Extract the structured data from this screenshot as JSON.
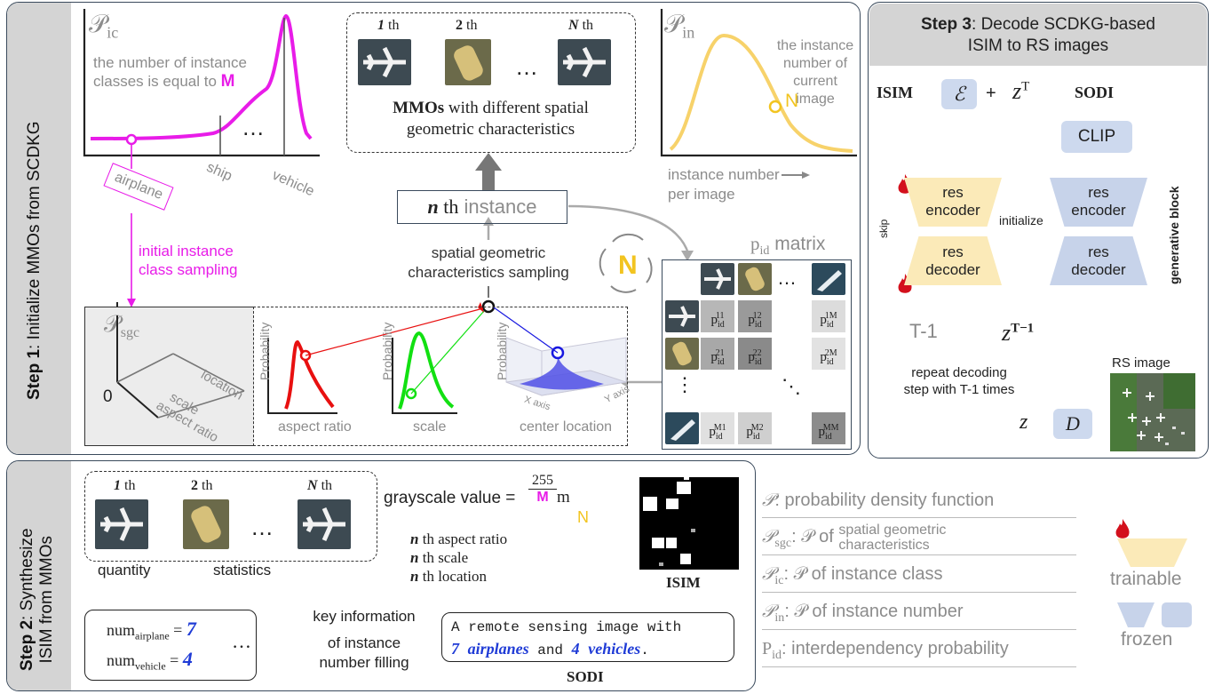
{
  "step1": {
    "label_bold": "Step 1",
    "label_rest": ": Initialize MMOs from SCDKG",
    "pic_symbol": "𝒫",
    "pic_sub": "ic",
    "pic_note_1": "the number of instance",
    "pic_note_2": "classes is equal to",
    "pic_M": "M",
    "ellipsis": "…",
    "class_airplane": "airplane",
    "class_ship": "ship",
    "class_vehicle": "vehicle",
    "initial_sampling_1": "initial instance",
    "initial_sampling_2": "class sampling",
    "mmo_labels": [
      {
        "num": "1",
        "suffix": " th"
      },
      {
        "num": "2",
        "suffix": " th"
      },
      {
        "num": "N",
        "suffix": " th"
      }
    ],
    "mmo_caption_bold": "MMOs",
    "mmo_caption_rest": " with different spatial",
    "mmo_caption_line2": "geometric characteristics",
    "pin_symbol": "𝒫",
    "pin_sub": "in",
    "pin_note_1": "the instance",
    "pin_note_2": "number of",
    "pin_note_3": "current image",
    "pin_N": "N",
    "pin_xlabel_1": "instance number",
    "pin_xlabel_2": "per image",
    "nth_instance_n": "n",
    "nth_instance_th": " th",
    "nth_instance_rest": " instance",
    "sgc_sampling_1": "spatial geometric",
    "sgc_sampling_2": "characteristics sampling",
    "loop_N": "N",
    "pid_label_p": "p",
    "pid_label_sub": "id",
    "pid_label_rest": " matrix",
    "psgc_symbol": "𝒫",
    "psgc_sub": "sgc",
    "psgc_zero": "0",
    "psgc_location": "location",
    "psgc_scale": "scale",
    "psgc_aspect": "aspect ratio",
    "prob_label": "Probability",
    "aspect_label": "aspect ratio",
    "scale_label": "scale",
    "center_label": "center location",
    "x_axis": "X axis",
    "y_axis": "Y axis",
    "cells": [
      {
        "sup": "11"
      },
      {
        "sup": "12"
      },
      {
        "sup": "1M"
      },
      {
        "sup": "21"
      },
      {
        "sup": "22"
      },
      {
        "sup": "2M"
      },
      {
        "sup": "M1"
      },
      {
        "sup": "M2"
      },
      {
        "sup": "MM"
      }
    ],
    "cell_p": "p",
    "cell_sub": "id",
    "vdots": "⋮",
    "ddots": "⋱",
    "hdots": "…"
  },
  "step2": {
    "label_bold": "Step 2",
    "label_rest_1": ": Synthesize",
    "label_rest_2": "ISIM from MMOs",
    "mmo_labels": [
      {
        "num": "1",
        "suffix": " th"
      },
      {
        "num": "2",
        "suffix": " th"
      },
      {
        "num": "N",
        "suffix": " th"
      }
    ],
    "ellipsis": "…",
    "grayscale_text": "grayscale value =",
    "frac_num": "255",
    "frac_den": "M",
    "frac_m": "m",
    "nth_n": "n",
    "nth_aspect": " th aspect ratio",
    "nth_scale": " th scale",
    "nth_location": " th location",
    "loop_N": "N",
    "isim_label": "ISIM",
    "quantity": "quantity",
    "statistics": "statistics",
    "num_word": "num",
    "num_airplane_sub": "airplane",
    "num_airplane_val": "7",
    "num_vehicle_sub": "vehicle",
    "num_vehicle_val": "4",
    "eq": "=",
    "key_info_1": "key information",
    "key_info_2": "of instance",
    "key_info_3": "number filling",
    "sodi_line1": "A remote sensing image with",
    "sodi_7": "7",
    "sodi_airplanes": "airplanes",
    "sodi_and": " and ",
    "sodi_4": "4",
    "sodi_vehicles": "vehicles",
    "sodi_dot": ".",
    "sodi_label": "SODI"
  },
  "step3": {
    "title_bold": "Step 3",
    "title_rest": ": Decode SCDKG-based",
    "title_line2": "ISIM to RS images",
    "isim": "ISIM",
    "epsilon": "ℰ",
    "plus": "+",
    "z": "z",
    "z_sup_T": "T",
    "sodi": "SODI",
    "clip": "CLIP",
    "res": "res",
    "encoder": "encoder",
    "decoder": "decoder",
    "initialize": "initialize",
    "skip": "skip",
    "generative_block": "generative block",
    "t_minus_1": "T-1",
    "z_sup_T1": "T−1",
    "repeat_1": "repeat decoding",
    "repeat_2": "step with T-1 times",
    "rs_image": "RS image",
    "z_final": "z",
    "D": "D"
  },
  "legend": {
    "rows": [
      {
        "sym": "𝒫",
        "sub": "",
        "text": ": probability density function"
      },
      {
        "sym": "𝒫",
        "sub": "sgc",
        "text": ": 𝒫 of ",
        "small1": "spatial geometric",
        "small2": "characteristics"
      },
      {
        "sym": "𝒫",
        "sub": "ic",
        "text": ": 𝒫 of instance class"
      },
      {
        "sym": "𝒫",
        "sub": "in",
        "text": ": 𝒫 of instance number"
      },
      {
        "sym": "P",
        "sub": "id",
        "text": ": interdependency probability"
      }
    ],
    "trainable": "trainable",
    "frozen": "frozen"
  },
  "colors": {
    "magenta": "#e81ce8",
    "yellow": "#f7d26a",
    "blue_box": "#cdd9ee",
    "frozen_blue": "#c7d3ea",
    "trainable_yellow": "#fbeab8",
    "flame": "#d3101c",
    "gray_side": "#d4d4d4",
    "num_blue": "#1f3bd6"
  }
}
